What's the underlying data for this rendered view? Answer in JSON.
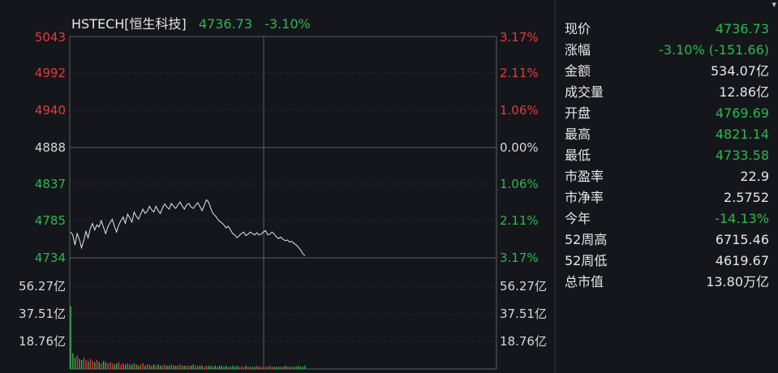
{
  "header": {
    "symbol": "HSTECH[恒生科技]",
    "price": "4736.73",
    "change_pct": "-3.10%"
  },
  "price_axis": {
    "left_labels": [
      "5043",
      "4992",
      "4940",
      "4888",
      "4837",
      "4785",
      "4734"
    ],
    "right_labels": [
      "3.17%",
      "2.11%",
      "1.06%",
      "0.00%",
      "1.06%",
      "2.11%",
      "3.17%"
    ],
    "label_colors": [
      "#e23b3b",
      "#e23b3b",
      "#e23b3b",
      "#d8d8d8",
      "#2db84d",
      "#2db84d",
      "#2db84d"
    ]
  },
  "volume_axis": {
    "labels": [
      "56.27亿",
      "37.51亿",
      "18.76亿"
    ]
  },
  "chart_data": {
    "type": "line",
    "title": "",
    "ylim": [
      4734,
      5043
    ],
    "prev_close": 4888,
    "series": [
      {
        "values": [
          4770,
          4766,
          4752,
          4768,
          4760,
          4748,
          4758,
          4771,
          4762,
          4775,
          4782,
          4773,
          4780,
          4777,
          4786,
          4777,
          4768,
          4777,
          4783,
          4788,
          4778,
          4770,
          4780,
          4786,
          4791,
          4782,
          4795,
          4790,
          4784,
          4798,
          4792,
          4788,
          4795,
          4802,
          4796,
          4799,
          4806,
          4801,
          4798,
          4806,
          4800,
          4796,
          4804,
          4809,
          4805,
          4802,
          4810,
          4806,
          4803,
          4808,
          4812,
          4806,
          4802,
          4808,
          4810,
          4805,
          4803,
          4807,
          4811,
          4806,
          4800,
          4807,
          4815,
          4812,
          4803,
          4796,
          4793,
          4789,
          4785,
          4783,
          4780,
          4776,
          4778,
          4773,
          4768,
          4766,
          4762,
          4765,
          4768,
          4770,
          4765,
          4767,
          4770,
          4768,
          4766,
          4769,
          4766,
          4767,
          4770,
          4772,
          4766,
          4767,
          4770,
          4767,
          4763,
          4761,
          4763,
          4760,
          4758,
          4759,
          4756,
          4757,
          4754,
          4752,
          4749,
          4745,
          4740,
          4737
        ]
      }
    ],
    "volume": [
      56.27,
      14,
      10,
      12,
      9,
      8,
      10,
      8,
      7,
      9,
      7,
      6,
      8,
      6,
      5,
      7,
      6,
      5,
      6,
      5,
      4,
      5,
      6,
      4,
      5,
      4,
      5,
      4,
      4,
      5,
      4,
      3,
      4,
      5,
      3,
      4,
      4,
      3,
      4,
      3,
      4,
      3,
      3,
      4,
      3,
      3,
      4,
      3,
      3,
      3,
      4,
      3,
      3,
      3,
      3,
      3,
      4,
      3,
      3,
      3,
      3,
      2,
      3,
      3,
      3,
      2,
      3,
      2,
      3,
      3,
      2,
      3,
      2,
      2,
      3,
      2,
      3,
      2,
      2,
      2,
      3,
      2,
      2,
      2,
      2,
      3,
      2,
      2,
      2,
      2,
      2,
      3,
      2,
      2,
      2,
      2,
      2,
      2,
      3,
      2,
      2,
      2,
      2,
      2,
      3,
      2,
      2,
      3
    ],
    "volume_ylim": [
      0,
      75
    ],
    "up_color": "#e23b3b",
    "down_color": "#2db84d"
  },
  "quote": {
    "rows": [
      {
        "label": "现价",
        "value": "4736.73",
        "color": "#2db84d"
      },
      {
        "label": "涨幅",
        "value": "-3.10% (-151.66)",
        "color": "#2db84d"
      },
      {
        "label": "金额",
        "value": "534.07亿",
        "color": "#e6e6e6"
      },
      {
        "label": "成交量",
        "value": "12.86亿",
        "color": "#e6e6e6"
      },
      {
        "label": "开盘",
        "value": "4769.69",
        "color": "#2db84d"
      },
      {
        "label": "最高",
        "value": "4821.14",
        "color": "#2db84d"
      },
      {
        "label": "最低",
        "value": "4733.58",
        "color": "#2db84d"
      },
      {
        "label": "市盈率",
        "value": "22.9",
        "color": "#e6e6e6"
      },
      {
        "label": "市净率",
        "value": "2.5752",
        "color": "#e6e6e6"
      },
      {
        "label": "今年",
        "value": "-14.13%",
        "color": "#2db84d"
      },
      {
        "label": "52周高",
        "value": "6715.46",
        "color": "#e6e6e6"
      },
      {
        "label": "52周低",
        "value": "4619.67",
        "color": "#e6e6e6"
      },
      {
        "label": "总市值",
        "value": "13.80万亿",
        "color": "#e6e6e6"
      }
    ]
  }
}
